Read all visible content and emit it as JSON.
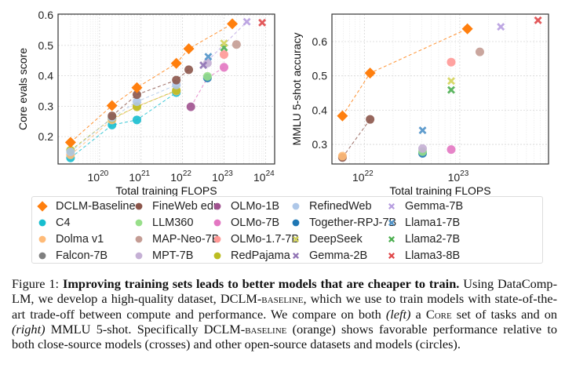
{
  "chart_data": [
    {
      "type": "scatter",
      "panel": "left",
      "xlabel": "Total training FLOPS",
      "ylabel": "Core evals score",
      "xscale": "log",
      "xlim_log10": [
        19.0,
        24.22
      ],
      "ylim": [
        0.11,
        0.603
      ],
      "x_ticks": [
        {
          "base": "10",
          "exp": "20",
          "v": 20
        },
        {
          "base": "10",
          "exp": "21",
          "v": 21
        },
        {
          "base": "10",
          "exp": "22",
          "v": 22
        },
        {
          "base": "10",
          "exp": "23",
          "v": 23
        },
        {
          "base": "10",
          "exp": "24",
          "v": 24
        }
      ],
      "y_ticks": [
        {
          "label": "0.2",
          "v": 0.2
        },
        {
          "label": "0.3",
          "v": 0.3
        },
        {
          "label": "0.4",
          "v": 0.4
        },
        {
          "label": "0.5",
          "v": 0.5
        },
        {
          "label": "0.6",
          "v": 0.6
        }
      ],
      "grid": true,
      "series": [
        {
          "name": "C4",
          "points": [
            [
              19.3,
              0.13
            ],
            [
              20.3,
              0.238
            ],
            [
              20.9,
              0.255
            ],
            [
              21.85,
              0.345
            ]
          ],
          "line": true
        },
        {
          "name": "Dolma v1",
          "points": [
            [
              19.3,
              0.14
            ],
            [
              20.3,
              0.255
            ],
            [
              20.9,
              0.3
            ],
            [
              21.85,
              0.35
            ]
          ],
          "line": true
        },
        {
          "name": "RedPajama",
          "points": [
            [
              19.3,
              0.155
            ],
            [
              20.3,
              0.26
            ],
            [
              20.9,
              0.298
            ],
            [
              21.85,
              0.352
            ]
          ],
          "line": true
        },
        {
          "name": "RefinedWeb",
          "points": [
            [
              19.3,
              0.15
            ],
            [
              20.3,
              0.262
            ],
            [
              20.9,
              0.315
            ],
            [
              21.85,
              0.37
            ]
          ],
          "line": true
        },
        {
          "name": "FineWeb edu",
          "points": [
            [
              20.3,
              0.268
            ],
            [
              20.9,
              0.338
            ],
            [
              21.85,
              0.386
            ],
            [
              22.15,
              0.42
            ]
          ],
          "line": true
        },
        {
          "name": "DCLM-Baseline",
          "points": [
            [
              19.3,
              0.181
            ],
            [
              20.3,
              0.302
            ],
            [
              20.9,
              0.361
            ],
            [
              21.85,
              0.441
            ],
            [
              22.15,
              0.489
            ],
            [
              23.2,
              0.571
            ]
          ],
          "line": true
        },
        {
          "name": "OLMo-1B",
          "points": [
            [
              22.2,
              0.298
            ]
          ],
          "line": false
        },
        {
          "name": "Together-RPJ-7B",
          "points": [
            [
              22.6,
              0.393
            ]
          ],
          "line": false
        },
        {
          "name": "LLM360",
          "points": [
            [
              22.6,
              0.398
            ]
          ],
          "line": false
        },
        {
          "name": "MPT-7B",
          "points": [
            [
              22.6,
              0.442
            ]
          ],
          "line": false
        },
        {
          "name": "Gemma-2B",
          "points": [
            [
              22.5,
              0.435
            ]
          ],
          "line": false
        },
        {
          "name": "Llama1-7B",
          "points": [
            [
              22.62,
              0.463
            ]
          ],
          "line": false
        },
        {
          "name": "OLMo-7B",
          "points": [
            [
              23.0,
              0.428
            ]
          ],
          "line": false
        },
        {
          "name": "OLMo-1.7-7B",
          "points": [
            [
              23.0,
              0.47
            ]
          ],
          "line": false
        },
        {
          "name": "Llama2-7B",
          "points": [
            [
              23.0,
              0.493
            ]
          ],
          "line": false
        },
        {
          "name": "DeepSeek",
          "points": [
            [
              23.0,
              0.507
            ]
          ],
          "line": false
        },
        {
          "name": "MAP-Neo-7B",
          "points": [
            [
              23.3,
              0.503
            ]
          ],
          "line": false
        },
        {
          "name": "Gemma-7B",
          "points": [
            [
              23.55,
              0.578
            ]
          ],
          "line": false
        },
        {
          "name": "Llama3-8B",
          "points": [
            [
              23.92,
              0.575
            ]
          ],
          "line": false
        }
      ],
      "links": [
        [
          "OLMo-1B",
          "Together-RPJ-7B",
          "OLMo-7B"
        ],
        [
          "Gemma-2B",
          "Gemma-7B"
        ]
      ]
    },
    {
      "type": "scatter",
      "panel": "right",
      "xlabel": "Total training FLOPS",
      "ylabel": "MMLU 5-shot accuracy",
      "xscale": "log",
      "xlim_log10": [
        21.66,
        23.93
      ],
      "ylim": [
        0.243,
        0.68
      ],
      "x_ticks": [
        {
          "base": "10",
          "exp": "22",
          "v": 22
        },
        {
          "base": "10",
          "exp": "23",
          "v": 23
        }
      ],
      "y_ticks": [
        {
          "label": "0.3",
          "v": 0.3
        },
        {
          "label": "0.4",
          "v": 0.4
        },
        {
          "label": "0.5",
          "v": 0.5
        },
        {
          "label": "0.6",
          "v": 0.6
        }
      ],
      "grid": true,
      "series": [
        {
          "name": "FineWeb edu",
          "points": [
            [
              21.77,
              0.262
            ],
            [
              22.06,
              0.373
            ]
          ],
          "line": true
        },
        {
          "name": "Dolma v1",
          "points": [
            [
              21.77,
              0.266
            ]
          ],
          "line": false
        },
        {
          "name": "DCLM-Baseline",
          "points": [
            [
              21.77,
              0.383
            ],
            [
              22.06,
              0.508
            ],
            [
              23.08,
              0.637
            ]
          ],
          "line": true
        },
        {
          "name": "Together-RPJ-7B",
          "points": [
            [
              22.61,
              0.274
            ]
          ],
          "line": false
        },
        {
          "name": "LLM360",
          "points": [
            [
              22.61,
              0.279
            ]
          ],
          "line": false
        },
        {
          "name": "MPT-7B",
          "points": [
            [
              22.61,
              0.288
            ]
          ],
          "line": false
        },
        {
          "name": "Llama1-7B",
          "points": [
            [
              22.61,
              0.341
            ]
          ],
          "line": false
        },
        {
          "name": "OLMo-7B",
          "points": [
            [
              22.91,
              0.285
            ]
          ],
          "line": false
        },
        {
          "name": "Llama2-7B",
          "points": [
            [
              22.91,
              0.459
            ]
          ],
          "line": false
        },
        {
          "name": "DeepSeek",
          "points": [
            [
              22.91,
              0.485
            ]
          ],
          "line": false
        },
        {
          "name": "OLMo-1.7-7B",
          "points": [
            [
              22.91,
              0.54
            ]
          ],
          "line": false
        },
        {
          "name": "MAP-Neo-7B",
          "points": [
            [
              23.21,
              0.57
            ]
          ],
          "line": false
        },
        {
          "name": "Gemma-7B",
          "points": [
            [
              23.43,
              0.643
            ]
          ],
          "line": false
        },
        {
          "name": "Llama3-8B",
          "points": [
            [
              23.82,
              0.662
            ]
          ],
          "line": false
        }
      ],
      "links": []
    }
  ],
  "styles": {
    "DCLM-Baseline": {
      "color": "#ff7f0e",
      "marker": "diamond"
    },
    "C4": {
      "color": "#17becf",
      "marker": "circle"
    },
    "Dolma v1": {
      "color": "#ffbb78",
      "marker": "circle"
    },
    "Falcon-7B": {
      "color": "#7f7f7f",
      "marker": "circle"
    },
    "FineWeb edu": {
      "color": "#8c564b",
      "marker": "circle"
    },
    "LLM360": {
      "color": "#98df8a",
      "marker": "circle"
    },
    "MAP-Neo-7B": {
      "color": "#c49c94",
      "marker": "circle"
    },
    "MPT-7B": {
      "color": "#c5b0d5",
      "marker": "circle"
    },
    "OLMo-1B": {
      "color": "#a0528f",
      "marker": "circle"
    },
    "OLMo-7B": {
      "color": "#e377c2",
      "marker": "circle"
    },
    "OLMo-1.7-7B": {
      "color": "#ff9896",
      "marker": "circle"
    },
    "RedPajama": {
      "color": "#bcbd22",
      "marker": "circle"
    },
    "RefinedWeb": {
      "color": "#aec7e8",
      "marker": "circle"
    },
    "Together-RPJ-7B": {
      "color": "#1f77b4",
      "marker": "circle"
    },
    "DeepSeek": {
      "color": "#d4d45a",
      "marker": "cross"
    },
    "Gemma-2B": {
      "color": "#9073b4",
      "marker": "cross"
    },
    "Gemma-7B": {
      "color": "#b79ee0",
      "marker": "cross"
    },
    "Llama1-7B": {
      "color": "#4f93c9",
      "marker": "cross"
    },
    "Llama2-7B": {
      "color": "#4caf50",
      "marker": "cross"
    },
    "Llama3-8B": {
      "color": "#e0484a",
      "marker": "cross"
    }
  },
  "legend": {
    "placement": "below",
    "columns": [
      [
        "DCLM-Baseline",
        "C4",
        "Dolma v1",
        "Falcon-7B"
      ],
      [
        "FineWeb edu",
        "LLM360",
        "MAP-Neo-7B",
        "MPT-7B"
      ],
      [
        "OLMo-1B",
        "OLMo-7B",
        "OLMo-1.7-7B",
        "RedPajama"
      ],
      [
        "RefinedWeb",
        "Together-RPJ-7B",
        "DeepSeek",
        "Gemma-2B"
      ],
      [
        "Gemma-7B",
        "Llama1-7B",
        "Llama2-7B",
        "Llama3-8B"
      ]
    ]
  },
  "caption": {
    "label": "Figure 1:",
    "title": "Improving training sets leads to better models that are cheaper to train.",
    "p1": "Using DataComp-LM, we develop a high-quality dataset, DCLM-",
    "sc1": "baseline",
    "p2": ", which we use to train models with state-of-the-art trade-off between compute and performance. We compare on both ",
    "i1": "(left)",
    "p3": " a C",
    "sc2": "ore",
    "p4": " set of tasks and on ",
    "i2": "(right)",
    "p5": " MMLU 5-shot. Specifically DCLM-",
    "sc3": "baseline",
    "p6": " (orange) shows favorable performance relative to both close-source models (crosses) and other open-source datasets and models (circles)."
  }
}
